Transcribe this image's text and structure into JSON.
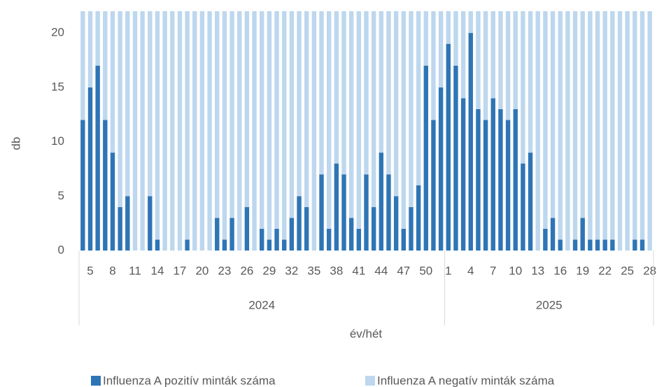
{
  "chart_data": {
    "type": "stacked_bar",
    "y_label": "db",
    "x_label": "év/hét",
    "groups": [
      {
        "name": "2024",
        "categories": [
          null,
          "5",
          null,
          null,
          "8",
          null,
          null,
          "11",
          null,
          null,
          "14",
          null,
          null,
          "17",
          null,
          null,
          "20",
          null,
          null,
          "23",
          null,
          null,
          "26",
          null,
          null,
          "29",
          null,
          null,
          "32",
          null,
          null,
          "35",
          null,
          null,
          "38",
          null,
          null,
          "41",
          null,
          null,
          "44",
          null,
          null,
          "47",
          null,
          null,
          "50",
          null,
          null
        ]
      },
      {
        "name": "2025",
        "categories": [
          "1",
          null,
          null,
          "4",
          null,
          null,
          "7",
          null,
          null,
          "10",
          null,
          null,
          "13",
          null,
          null,
          "16",
          null,
          null,
          "19",
          null,
          null,
          "22",
          null,
          null,
          "25",
          null,
          null,
          "28"
        ]
      }
    ],
    "series": [
      {
        "name": "Influenza A pozitív minták száma",
        "color": "#2e75b6",
        "values": [
          12,
          15,
          17,
          12,
          9,
          4,
          5,
          0,
          0,
          5,
          1,
          0,
          0,
          0,
          1,
          0,
          0,
          0,
          3,
          1,
          3,
          0,
          4,
          0,
          2,
          1,
          2,
          1,
          3,
          5,
          4,
          0,
          7,
          2,
          8,
          7,
          3,
          2,
          7,
          4,
          9,
          7,
          5,
          2,
          4,
          6,
          17,
          12,
          15,
          19,
          17,
          14,
          20,
          13,
          12,
          14,
          13,
          12,
          13,
          8,
          9,
          0,
          2,
          3,
          1,
          0,
          1,
          3,
          1,
          1,
          1,
          1,
          0,
          0,
          1,
          1,
          0
        ]
      },
      {
        "name": "Influenza A negatív minták száma",
        "color": "#bdd7ee",
        "values": [
          10,
          7,
          5,
          10,
          13,
          18,
          17,
          22,
          22,
          17,
          21,
          22,
          22,
          22,
          21,
          22,
          22,
          22,
          19,
          21,
          19,
          22,
          18,
          22,
          20,
          21,
          20,
          21,
          19,
          17,
          18,
          22,
          15,
          20,
          14,
          15,
          19,
          20,
          15,
          18,
          13,
          15,
          17,
          20,
          18,
          16,
          5,
          10,
          7,
          3,
          5,
          8,
          2,
          9,
          10,
          8,
          9,
          10,
          9,
          14,
          13,
          22,
          20,
          19,
          21,
          22,
          21,
          19,
          21,
          21,
          21,
          21,
          22,
          22,
          21,
          21,
          22
        ]
      }
    ],
    "ylim": [
      0,
      22
    ],
    "yticks": [
      0,
      5,
      10,
      15,
      20
    ],
    "legend": "bottom"
  }
}
